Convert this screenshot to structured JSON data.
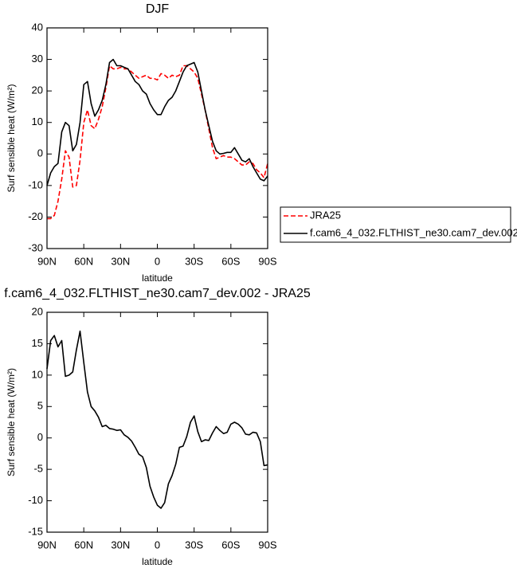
{
  "chart_data": [
    {
      "type": "line",
      "title": "DJF",
      "xlabel": "latitude",
      "ylabel": "Surf sensible heat (W/m²)",
      "x": [
        90,
        87,
        84,
        81,
        78,
        75,
        72,
        69,
        66,
        63,
        60,
        57,
        54,
        51,
        48,
        45,
        42,
        39,
        36,
        33,
        30,
        27,
        24,
        21,
        18,
        15,
        12,
        9,
        6,
        3,
        0,
        -3,
        -6,
        -9,
        -12,
        -15,
        -18,
        -21,
        -24,
        -27,
        -30,
        -33,
        -36,
        -39,
        -42,
        -45,
        -48,
        -51,
        -54,
        -57,
        -60,
        -63,
        -66,
        -69,
        -72,
        -75,
        -78,
        -81,
        -84,
        -87,
        -90
      ],
      "series": [
        {
          "name": "JRA25",
          "color": "#ff0000",
          "linestyle": "dashed",
          "values": [
            -20.5,
            -20.5,
            -19.5,
            -15,
            -8,
            1,
            -1,
            -10.5,
            -10,
            -2,
            10,
            14,
            9,
            8,
            11,
            15,
            21,
            28,
            27,
            27,
            27.5,
            27,
            27,
            26,
            25,
            24,
            24.5,
            25,
            24,
            24,
            23.5,
            25.5,
            25,
            24,
            25,
            24.5,
            25,
            28,
            28,
            27,
            26,
            24,
            19,
            14,
            8,
            2,
            -1.5,
            -1,
            -0.5,
            -1,
            -1,
            -1.5,
            -2.5,
            -3.5,
            -3.5,
            -2.5,
            -3,
            -5,
            -6,
            -7.5,
            -3
          ]
        },
        {
          "name": "f.cam6_4_032.FLTHIST_ne30.cam7_dev.002",
          "color": "#000000",
          "linestyle": "solid",
          "values": [
            -10,
            -6,
            -4,
            -3,
            7,
            10,
            9,
            1,
            3,
            10,
            22,
            23,
            16,
            12,
            14,
            17,
            22,
            29,
            30,
            28,
            28,
            27.5,
            27,
            25,
            23,
            22,
            20,
            19,
            16,
            14,
            12.5,
            12.5,
            15,
            17,
            18,
            20,
            23,
            26,
            28,
            28.5,
            29,
            26,
            20,
            14,
            9,
            4,
            1,
            0,
            0.2,
            0.5,
            0.5,
            2,
            0,
            -2,
            -2.5,
            -1.5,
            -4,
            -6,
            -8,
            -8.5,
            -7
          ]
        }
      ],
      "xlim": [
        90,
        -90
      ],
      "xticks": [
        {
          "value": 90,
          "label": "90N"
        },
        {
          "value": 60,
          "label": "60N"
        },
        {
          "value": 30,
          "label": "30N"
        },
        0,
        {
          "value": -30,
          "label": "30S"
        },
        {
          "value": -60,
          "label": "60S"
        },
        {
          "value": -90,
          "label": "90S"
        }
      ],
      "ylim": [
        -30,
        40
      ],
      "yticks": [
        -30,
        -20,
        -10,
        0,
        10,
        20,
        30,
        40
      ],
      "legend": "right",
      "grid": false
    },
    {
      "type": "line",
      "title": "f.cam6_4_032.FLTHIST_ne30.cam7_dev.002 - JRA25",
      "xlabel": "latitude",
      "ylabel": "Surf sensible heat (W/m²)",
      "x": [
        90,
        87,
        84,
        81,
        78,
        75,
        72,
        69,
        66,
        63,
        60,
        57,
        54,
        51,
        48,
        45,
        42,
        39,
        36,
        33,
        30,
        27,
        24,
        21,
        18,
        15,
        12,
        9,
        6,
        3,
        0,
        -3,
        -6,
        -9,
        -12,
        -15,
        -18,
        -21,
        -24,
        -27,
        -30,
        -33,
        -36,
        -39,
        -42,
        -45,
        -48,
        -51,
        -54,
        -57,
        -60,
        -63,
        -66,
        -69,
        -72,
        -75,
        -78,
        -81,
        -84,
        -87,
        -90
      ],
      "color": "#000000",
      "values": [
        11,
        15.5,
        16.3,
        14.5,
        15.5,
        9.8,
        10,
        10.5,
        14,
        17,
        12,
        7.3,
        5,
        4.3,
        3.3,
        1.8,
        2,
        1.5,
        1.4,
        1.2,
        1.3,
        0.5,
        0.1,
        -0.5,
        -1.5,
        -2.6,
        -3,
        -4.7,
        -7.7,
        -9.4,
        -10.7,
        -11.2,
        -10.3,
        -7.3,
        -6,
        -4.2,
        -1.5,
        -1.3,
        0.2,
        2.5,
        3.5,
        1,
        -0.6,
        -0.3,
        -0.4,
        0.8,
        1.8,
        1.2,
        0.7,
        0.9,
        2.2,
        2.5,
        2.2,
        1.6,
        0.6,
        0.5,
        0.9,
        0.8,
        -0.6,
        -4.4,
        -4.3
      ],
      "xlim": [
        90,
        -90
      ],
      "xticks": [
        {
          "value": 90,
          "label": "90N"
        },
        {
          "value": 60,
          "label": "60N"
        },
        {
          "value": 30,
          "label": "30N"
        },
        0,
        {
          "value": -30,
          "label": "30S"
        },
        {
          "value": -60,
          "label": "60S"
        },
        {
          "value": -90,
          "label": "90S"
        }
      ],
      "ylim": [
        -15,
        20
      ],
      "yticks": [
        -15,
        -10,
        -5,
        0,
        5,
        10,
        15,
        20
      ],
      "grid": false
    }
  ]
}
